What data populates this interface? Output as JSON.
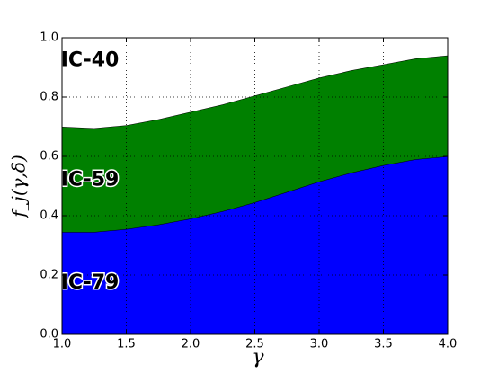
{
  "chart_data": {
    "type": "stacked_area",
    "xlabel": "γ",
    "ylabel": "f_j(γ,δ)",
    "x": [
      1.0,
      1.25,
      1.5,
      1.75,
      2.0,
      2.25,
      2.5,
      2.75,
      3.0,
      3.25,
      3.5,
      3.75,
      4.0
    ],
    "series": [
      {
        "name": "IC-79",
        "color": "#0000ff",
        "values": [
          0.345,
          0.345,
          0.355,
          0.37,
          0.39,
          0.415,
          0.445,
          0.48,
          0.515,
          0.545,
          0.57,
          0.59,
          0.6
        ]
      },
      {
        "name": "IC-59",
        "color": "#008000",
        "values": [
          0.355,
          0.35,
          0.35,
          0.355,
          0.36,
          0.36,
          0.36,
          0.355,
          0.35,
          0.345,
          0.34,
          0.34,
          0.34
        ]
      },
      {
        "name": "IC-40",
        "color": "#ffffff",
        "values": [
          0.3,
          0.305,
          0.295,
          0.275,
          0.25,
          0.225,
          0.195,
          0.165,
          0.135,
          0.11,
          0.09,
          0.07,
          0.06
        ]
      }
    ],
    "xlim": [
      1.0,
      4.0
    ],
    "ylim": [
      0.0,
      1.0
    ],
    "xticks": [
      {
        "value": 1.0,
        "label": "1.0"
      },
      1.5,
      {
        "value": 2.0,
        "label": "2.0"
      },
      2.5,
      {
        "value": 3.0,
        "label": "3.0"
      },
      3.5,
      {
        "value": 4.0,
        "label": "4.0"
      }
    ],
    "yticks": [
      {
        "value": 0.0,
        "label": "0.0"
      },
      0.2,
      0.4,
      0.6,
      0.8,
      {
        "value": 1.0,
        "label": "1.0"
      }
    ],
    "grid": true
  }
}
